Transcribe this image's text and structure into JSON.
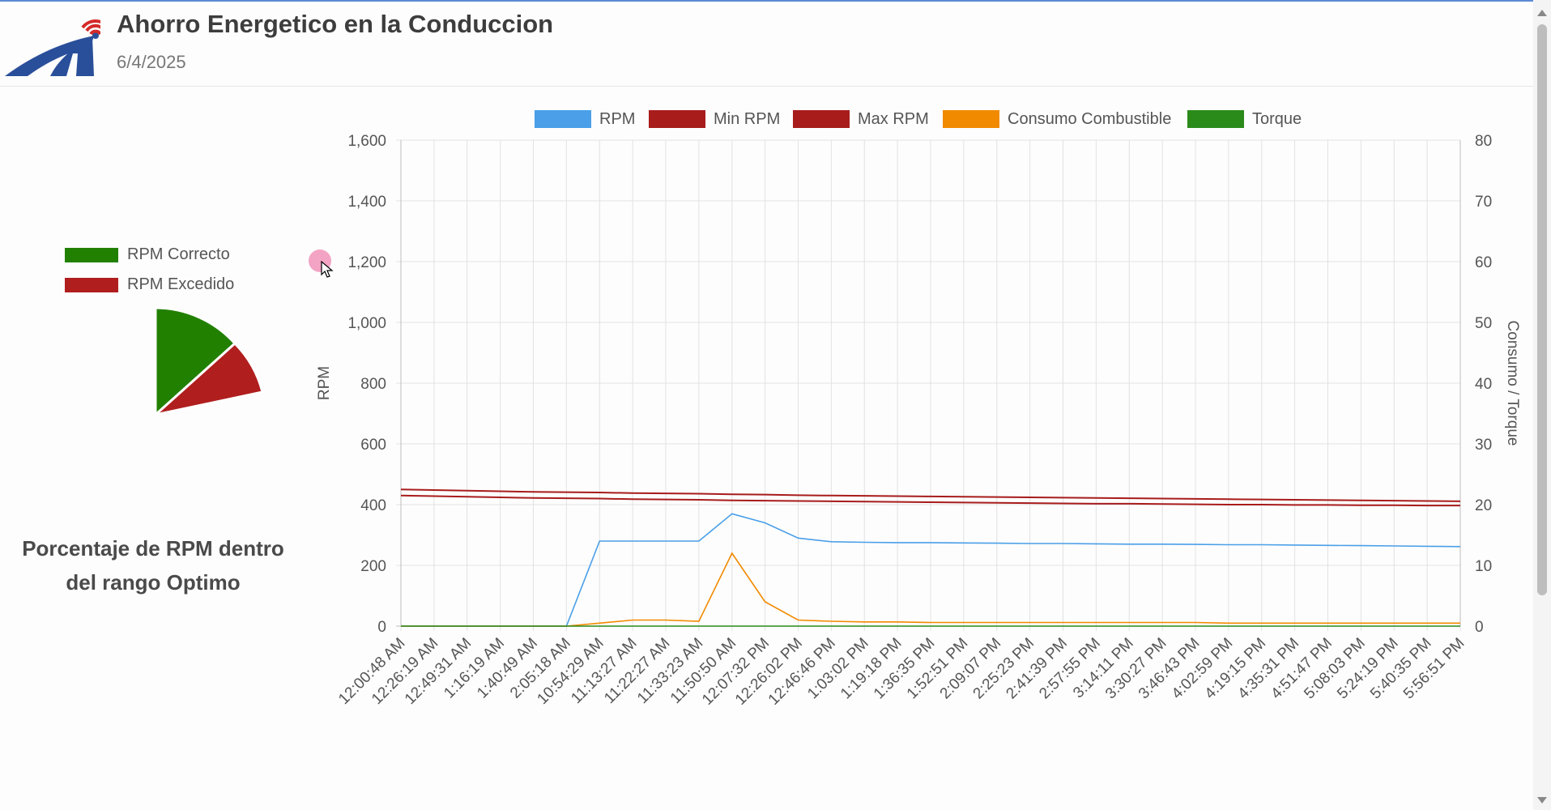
{
  "header": {
    "title": "Ahorro Energetico en la Conduccion",
    "date": "6/4/2025"
  },
  "pie": {
    "legend": [
      {
        "label": "RPM Correcto",
        "color": "#228000"
      },
      {
        "label": "RPM Excedido",
        "color": "#b01e1e"
      }
    ],
    "caption_line1": "Porcentaje de RPM dentro",
    "caption_line2": "del rango Optimo"
  },
  "chart_data": {
    "type": "line",
    "legend": [
      {
        "label": "RPM",
        "color": "#4a9fe8"
      },
      {
        "label": "Min RPM",
        "color": "#a81c1c"
      },
      {
        "label": "Max RPM",
        "color": "#a81c1c"
      },
      {
        "label": "Consumo Combustible",
        "color": "#f28a00"
      },
      {
        "label": "Torque",
        "color": "#2a8a1a"
      }
    ],
    "ylabel": "RPM",
    "y2label": "Consumo / Torque",
    "ylim": [
      0,
      1600
    ],
    "y2lim": [
      0,
      80
    ],
    "yticks": [
      "0",
      "200",
      "400",
      "600",
      "800",
      "1,000",
      "1,200",
      "1,400",
      "1,600"
    ],
    "y2ticks": [
      "0",
      "10",
      "20",
      "30",
      "40",
      "50",
      "60",
      "70",
      "80"
    ],
    "xticks": [
      "12:00:48 AM",
      "12:26:19 AM",
      "12:49:31 AM",
      "1:16:19 AM",
      "1:40:49 AM",
      "2:05:18 AM",
      "10:54:29 AM",
      "11:13:27 AM",
      "11:22:27 AM",
      "11:33:23 AM",
      "11:50:50 AM",
      "12:07:32 PM",
      "12:26:02 PM",
      "12:46:46 PM",
      "1:03:02 PM",
      "1:19:18 PM",
      "1:36:35 PM",
      "1:52:51 PM",
      "2:09:07 PM",
      "2:25:23 PM",
      "2:41:39 PM",
      "2:57:55 PM",
      "3:14:11 PM",
      "3:30:27 PM",
      "3:46:43 PM",
      "4:02:59 PM",
      "4:19:15 PM",
      "4:35:31 PM",
      "4:51:47 PM",
      "5:08:03 PM",
      "5:24:19 PM",
      "5:40:35 PM",
      "5:56:51 PM"
    ],
    "series": [
      {
        "name": "RPM",
        "values": [
          0,
          0,
          0,
          0,
          0,
          0,
          280,
          280,
          280,
          280,
          370,
          340,
          290,
          278,
          276,
          275,
          275,
          274,
          273,
          272,
          272,
          271,
          270,
          270,
          269,
          268,
          268,
          267,
          266,
          265,
          264,
          263,
          262
        ]
      },
      {
        "name": "Min RPM",
        "values": [
          430,
          428,
          426,
          424,
          422,
          421,
          420,
          418,
          417,
          416,
          414,
          413,
          412,
          411,
          410,
          409,
          408,
          407,
          406,
          405,
          404,
          403,
          403,
          402,
          401,
          400,
          400,
          399,
          399,
          398,
          398,
          397,
          397
        ]
      },
      {
        "name": "Max RPM",
        "values": [
          450,
          448,
          446,
          444,
          442,
          441,
          440,
          438,
          437,
          436,
          434,
          433,
          431,
          430,
          429,
          428,
          427,
          426,
          425,
          424,
          423,
          422,
          421,
          420,
          419,
          418,
          417,
          416,
          415,
          414,
          413,
          412,
          411
        ]
      },
      {
        "name": "Consumo Combustible",
        "values": [
          0,
          0,
          0,
          0,
          0,
          0,
          0.5,
          1,
          1,
          0.8,
          12,
          4,
          1,
          0.8,
          0.7,
          0.7,
          0.6,
          0.6,
          0.6,
          0.6,
          0.6,
          0.6,
          0.6,
          0.6,
          0.6,
          0.5,
          0.5,
          0.5,
          0.5,
          0.5,
          0.5,
          0.5,
          0.5
        ]
      },
      {
        "name": "Torque",
        "values": [
          0,
          0,
          0,
          0,
          0,
          0,
          0,
          0,
          0,
          0,
          0,
          0,
          0,
          0,
          0,
          0,
          0,
          0,
          0,
          0,
          0,
          0,
          0,
          0,
          0,
          0,
          0,
          0,
          0,
          0,
          0,
          0,
          0
        ]
      }
    ]
  },
  "pie_data": {
    "type": "pie",
    "values": [
      {
        "label": "RPM Correcto",
        "value": 0.125
      },
      {
        "label": "RPM Excedido",
        "value": 0.085
      }
    ]
  }
}
